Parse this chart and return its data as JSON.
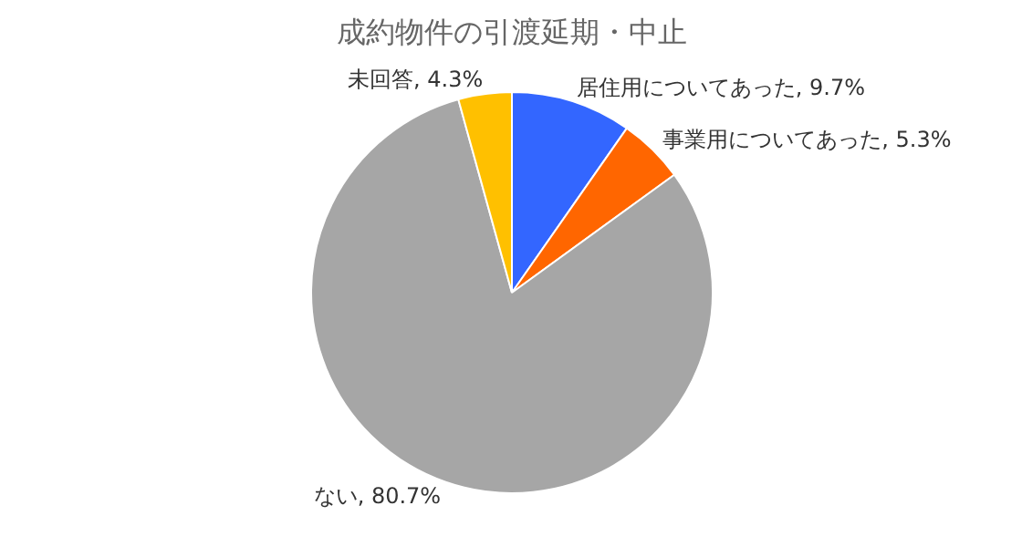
{
  "chart_data": {
    "type": "pie",
    "title": "成約物件の引渡延期・中止",
    "categories": [
      "居住用についてあった",
      "事業用についてあった",
      "ない",
      "未回答"
    ],
    "values": [
      9.7,
      5.3,
      80.7,
      4.3
    ],
    "value_labels": [
      "9.7%",
      "5.3%",
      "80.7%",
      "4.3%"
    ],
    "colors": [
      "#3366ff",
      "#ff6600",
      "#a6a6a6",
      "#ffc000"
    ]
  }
}
